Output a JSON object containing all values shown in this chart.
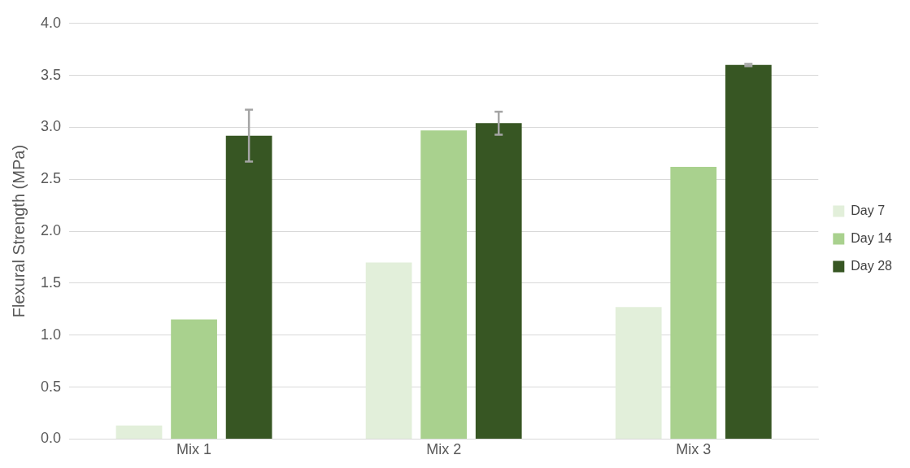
{
  "chart_data": {
    "type": "bar",
    "ylabel": "Flexural Strength (MPa)",
    "categories": [
      "Mix 1",
      "Mix 2",
      "Mix 3"
    ],
    "series": [
      {
        "name": "Day 7",
        "color": "#e2efda",
        "values": [
          0.13,
          1.7,
          1.27
        ]
      },
      {
        "name": "Day 14",
        "color": "#a9d18e",
        "values": [
          1.15,
          2.97,
          2.62
        ]
      },
      {
        "name": "Day 28",
        "color": "#375623",
        "values": [
          2.92,
          3.04,
          3.6
        ],
        "errors": [
          0.25,
          0.11,
          0.01
        ]
      }
    ],
    "ylim": [
      0,
      4
    ],
    "yticks": [
      {
        "value": 0,
        "label": "0.0"
      },
      0.5,
      {
        "value": 1,
        "label": "1.0"
      },
      1.5,
      {
        "value": 2,
        "label": "2.0"
      },
      2.5,
      {
        "value": 3,
        "label": "3.0"
      },
      3.5,
      {
        "value": 4,
        "label": "4.0"
      }
    ],
    "grid": "y",
    "legend": "right"
  }
}
